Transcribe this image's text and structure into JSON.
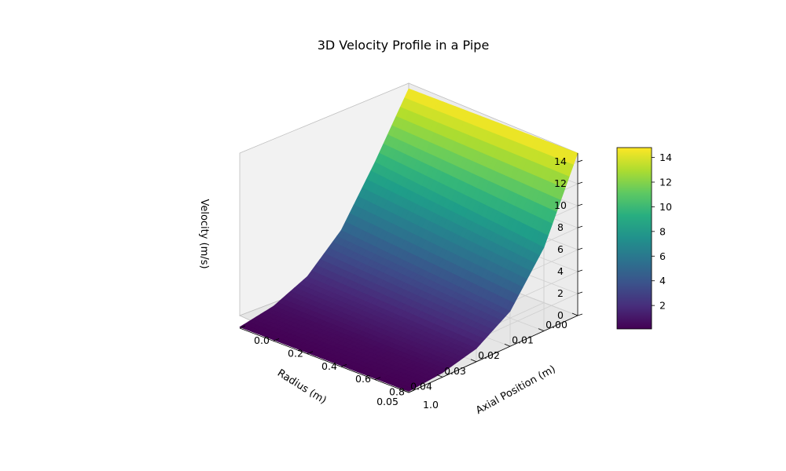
{
  "chart_data": {
    "type": "surface",
    "title": "3D Velocity Profile in a Pipe",
    "xlabel": "Radius (m)",
    "ylabel": "Axial Position (m)",
    "zlabel": "Velocity (m/s)",
    "x_ticks": [
      "0.00",
      "0.01",
      "0.02",
      "0.03",
      "0.04",
      "0.05"
    ],
    "y_ticks": [
      "0.0",
      "0.2",
      "0.4",
      "0.6",
      "0.8",
      "1.0"
    ],
    "z_ticks": [
      "0",
      "2",
      "4",
      "6",
      "8",
      "10",
      "12",
      "14"
    ],
    "xlim": [
      0,
      0.05
    ],
    "ylim": [
      0,
      1.0
    ],
    "zlim": [
      0,
      14.8
    ],
    "colormap": "viridis",
    "colorbar": {
      "ticks": [
        "2",
        "4",
        "6",
        "8",
        "10",
        "12",
        "14"
      ],
      "range": [
        0.1,
        14.8
      ]
    },
    "grid": true,
    "samples": {
      "radius_m": [
        0.0,
        0.01,
        0.02,
        0.03,
        0.04,
        0.05
      ],
      "velocity_at_axial_0_m_s": [
        14.8,
        9.5,
        4.7,
        1.9,
        0.6,
        0.1
      ],
      "velocity_at_axial_1_m_s": [
        14.8,
        7.6,
        3.2,
        1.2,
        0.4,
        0.1
      ]
    }
  }
}
